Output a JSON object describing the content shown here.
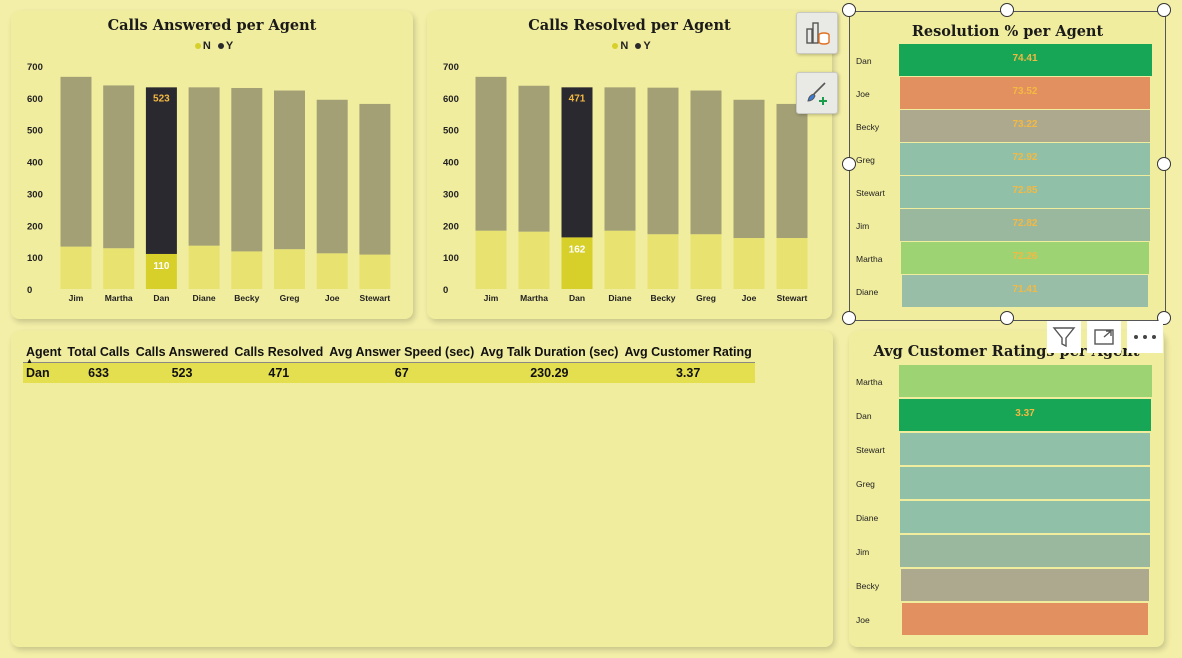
{
  "chart_data": [
    {
      "type": "bar",
      "title": "Calls Answered per Agent",
      "categories": [
        "Jim",
        "Martha",
        "Dan",
        "Diane",
        "Becky",
        "Greg",
        "Joe",
        "Stewart"
      ],
      "series": [
        {
          "name": "N",
          "values": [
            133,
            128,
            110,
            136,
            118,
            125,
            112,
            108
          ]
        },
        {
          "name": "Y",
          "values": [
            533,
            511,
            523,
            497,
            513,
            498,
            482,
            473
          ]
        }
      ],
      "highlighted_category": "Dan",
      "data_labels": {
        "N": "110",
        "Y": "523"
      },
      "yticks": [
        "0",
        "100",
        "200",
        "300",
        "400",
        "500",
        "600",
        "700"
      ],
      "ylim": [
        0,
        700
      ],
      "legend_position": "top-center",
      "stacked": true
    },
    {
      "type": "bar",
      "title": "Calls Resolved per Agent",
      "categories": [
        "Jim",
        "Martha",
        "Dan",
        "Diane",
        "Becky",
        "Greg",
        "Joe",
        "Stewart"
      ],
      "series": [
        {
          "name": "N",
          "values": [
            183,
            180,
            162,
            183,
            172,
            172,
            160,
            160
          ]
        },
        {
          "name": "Y",
          "values": [
            483,
            458,
            471,
            450,
            460,
            451,
            434,
            421
          ]
        }
      ],
      "highlighted_category": "Dan",
      "data_labels": {
        "N": "162",
        "Y": "471"
      },
      "yticks": [
        "0",
        "100",
        "200",
        "300",
        "400",
        "500",
        "600",
        "700"
      ],
      "ylim": [
        0,
        700
      ],
      "legend_position": "top-center",
      "stacked": true
    },
    {
      "type": "bar",
      "orientation": "horizontal",
      "title": "Resolution % per Agent",
      "categories": [
        "Dan",
        "Joe",
        "Becky",
        "Greg",
        "Stewart",
        "Jim",
        "Martha",
        "Diane"
      ],
      "values": [
        74.41,
        73.52,
        73.22,
        72.92,
        72.85,
        72.82,
        72.26,
        71.41
      ],
      "labels": [
        "74.41",
        "73.52",
        "73.22",
        "72.92",
        "72.85",
        "72.82",
        "72.26",
        "71.41"
      ],
      "colors": [
        "#17a556",
        "#e29060",
        "#ada98e",
        "#90c0a8",
        "#90c0a8",
        "#9ab89e",
        "#9ed373",
        "#98bea8"
      ]
    },
    {
      "type": "bar",
      "orientation": "horizontal",
      "title": "Avg Customer Ratings per Agent",
      "categories": [
        "Martha",
        "Dan",
        "Stewart",
        "Greg",
        "Diane",
        "Jim",
        "Becky",
        "Joe"
      ],
      "values": [
        3.38,
        3.37,
        3.36,
        3.36,
        3.36,
        3.36,
        3.35,
        3.34
      ],
      "labels": [
        "",
        "3.37",
        "",
        "",
        "",
        "",
        "",
        ""
      ],
      "colors": [
        "#9ed373",
        "#17a556",
        "#90c0a8",
        "#90c0a8",
        "#90c0a8",
        "#9ab89e",
        "#ada98e",
        "#e29060"
      ]
    }
  ],
  "legend": {
    "n": "N",
    "y": "Y",
    "n_color": "#d8d02a",
    "y_color": "#2a2a2a"
  },
  "colors": {
    "bar_n": "#e8e371",
    "bar_y": "#a3a076",
    "hl_n": "#d8d02a",
    "hl_y": "#2b2930",
    "label": "#f4b942",
    "card": "#f1ed9e",
    "bg": "#f3efa8"
  },
  "table": {
    "headers": [
      "Agent",
      "Total Calls",
      "Calls Answered",
      "Calls Resolved",
      "Avg Answer Speed (sec)",
      "Avg Talk Duration (sec)",
      "Avg Customer Rating"
    ],
    "rows": [
      [
        "Dan",
        "633",
        "523",
        "471",
        "67",
        "230.29",
        "3.37"
      ]
    ]
  },
  "icons": {
    "tool1": "build-visual-icon",
    "tool2": "format-paintbrush-icon",
    "filter": "filter-icon",
    "focus": "focus-mode-icon",
    "more": "more-options-icon"
  }
}
